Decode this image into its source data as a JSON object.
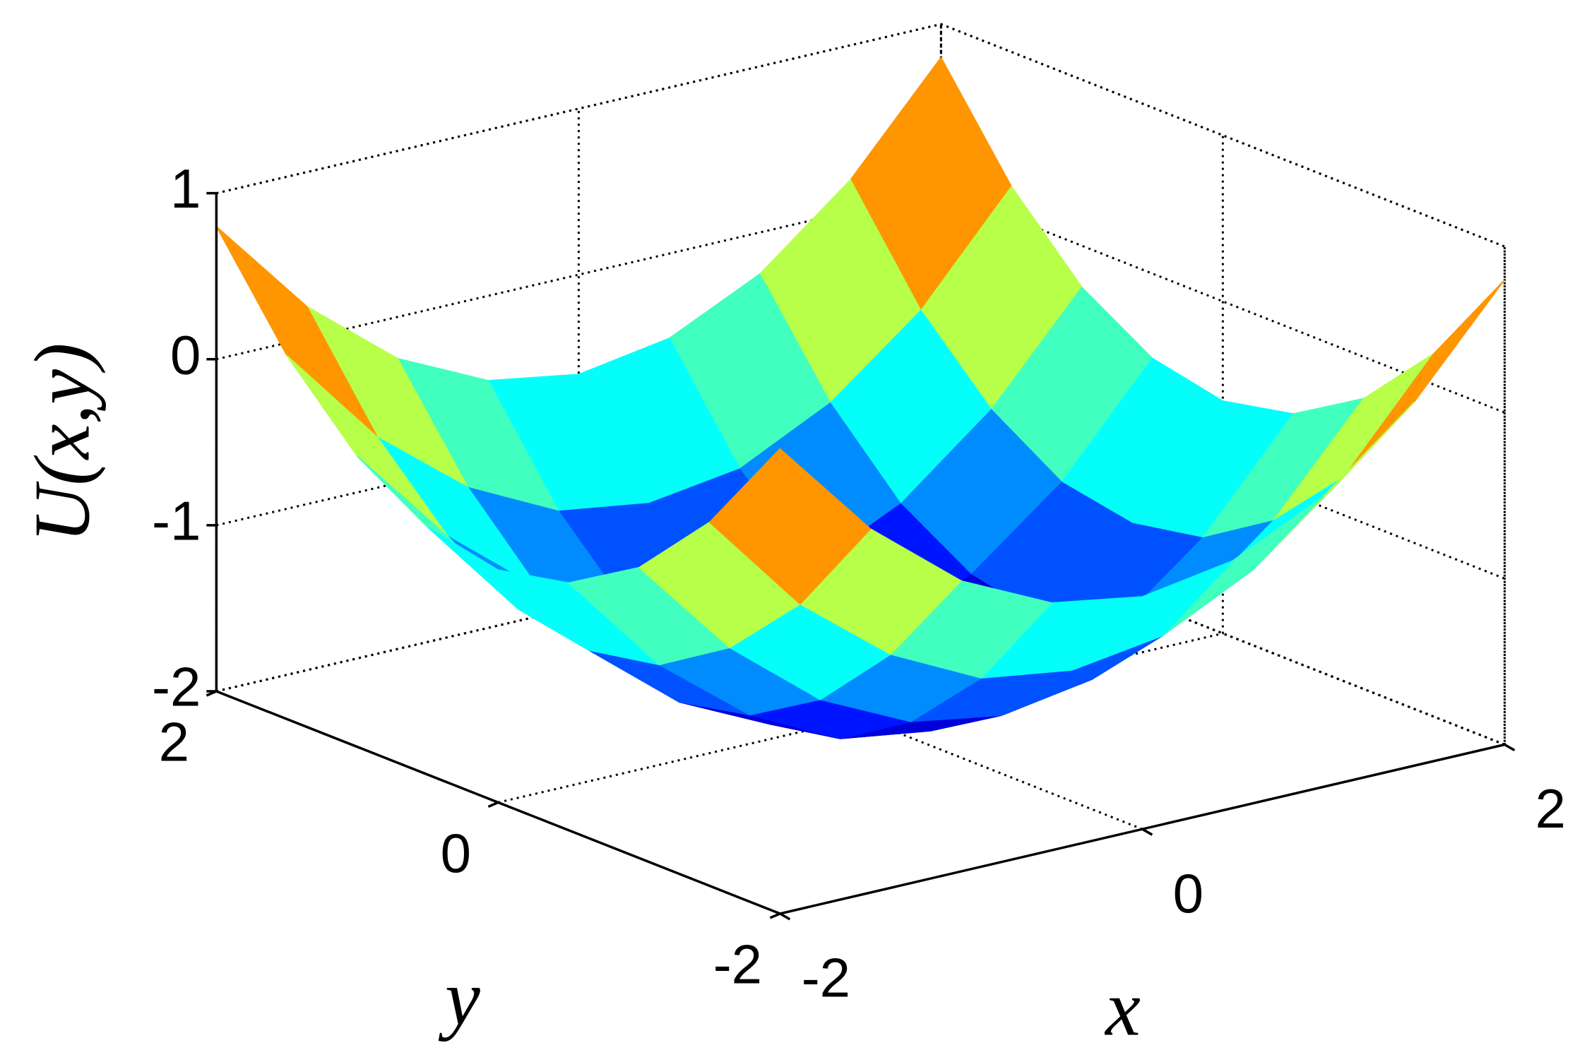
{
  "chart_data": {
    "type": "surface",
    "x_label": "x",
    "y_label": "y",
    "z_label": "U(x,y)",
    "colormap": "jet",
    "x": [
      -2,
      -1.5,
      -1,
      -0.5,
      0,
      0.5,
      1,
      1.5,
      2
    ],
    "y": [
      -2,
      -1.5,
      -1,
      -0.5,
      0,
      0.5,
      1,
      1.5,
      2
    ],
    "z": [
      [
        0.8,
        0.19,
        -0.25,
        -0.51,
        -0.6,
        -0.51,
        -0.25,
        0.19,
        0.8
      ],
      [
        0.19,
        -0.43,
        -0.86,
        -1.13,
        -1.21,
        -1.13,
        -0.86,
        -0.43,
        0.19
      ],
      [
        -0.25,
        -0.86,
        -1.3,
        -1.56,
        -1.65,
        -1.56,
        -1.3,
        -0.86,
        -0.25
      ],
      [
        -0.51,
        -1.13,
        -1.56,
        -1.83,
        -1.91,
        -1.83,
        -1.56,
        -1.13,
        -0.51
      ],
      [
        -0.6,
        -1.21,
        -1.65,
        -1.91,
        -2,
        -1.91,
        -1.65,
        -1.21,
        -0.6
      ],
      [
        -0.51,
        -1.13,
        -1.56,
        -1.83,
        -1.91,
        -1.83,
        -1.56,
        -1.13,
        -0.51
      ],
      [
        -0.25,
        -0.86,
        -1.3,
        -1.56,
        -1.65,
        -1.56,
        -1.3,
        -0.86,
        -0.25
      ],
      [
        0.19,
        -0.43,
        -0.86,
        -1.13,
        -1.21,
        -1.13,
        -0.86,
        -0.43,
        0.19
      ],
      [
        0.8,
        0.19,
        -0.25,
        -0.51,
        -0.6,
        -0.51,
        -0.25,
        0.19,
        0.8
      ]
    ],
    "xlim": [
      -2,
      2
    ],
    "ylim": [
      -2,
      2
    ],
    "zlim": [
      -2,
      1
    ],
    "xticks": [
      -2,
      0,
      2
    ],
    "yticks": [
      -2,
      0,
      2
    ],
    "zticks": [
      -2,
      -1,
      0,
      1
    ],
    "grid": true
  }
}
